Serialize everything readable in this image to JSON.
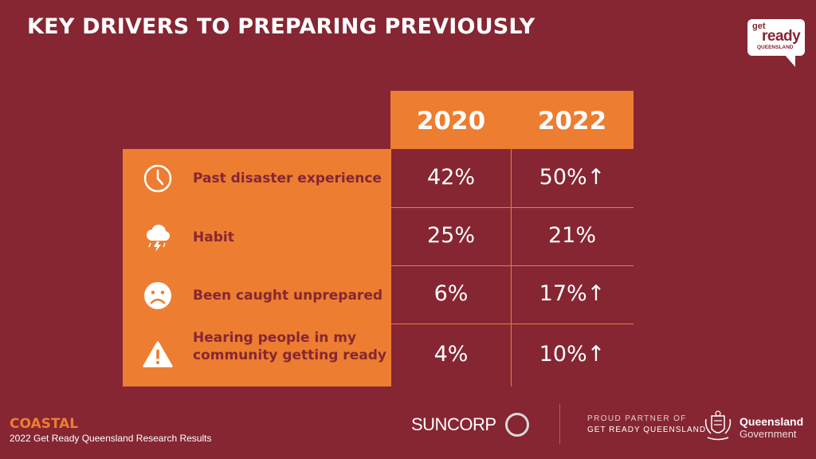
{
  "title": "KEY DRIVERS TO PREPARING PREVIOUSLY",
  "logo": {
    "get": "get",
    "ready": "ready",
    "region": "QUEENSLAND"
  },
  "colors": {
    "background": "#862633",
    "accent": "#ed7d31",
    "text": "#ffffff"
  },
  "table": {
    "headers": [
      "2020",
      "2022"
    ],
    "rows": [
      {
        "icon": "clock-icon",
        "label": "Past disaster experience",
        "v2020": "42%",
        "v2022": "50%↑"
      },
      {
        "icon": "storm-cloud-icon",
        "label": "Habit",
        "v2020": "25%",
        "v2022": "21%"
      },
      {
        "icon": "sad-face-icon",
        "label": "Been caught unprepared",
        "v2020": "6%",
        "v2022": "17%↑"
      },
      {
        "icon": "warning-icon",
        "label": "Hearing people in my community getting ready",
        "v2020": "4%",
        "v2022": "10%↑"
      }
    ]
  },
  "footer": {
    "region": "COASTAL",
    "subtitle": "2022 Get Ready Queensland Research Results",
    "sponsor": "SUNCORP",
    "partner_line1": "PROUD PARTNER OF",
    "partner_line2": "GET READY QUEENSLAND",
    "gov_line1": "Queensland",
    "gov_line2": "Government"
  }
}
